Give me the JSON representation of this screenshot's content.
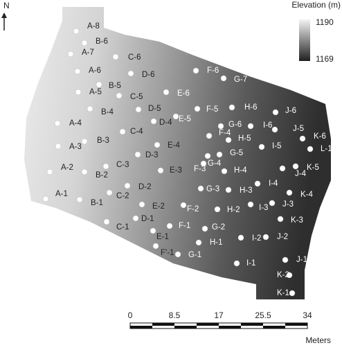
{
  "north": "N",
  "legend": {
    "title": "Elevation (m)",
    "max": 1190,
    "min": 1169
  },
  "points": [
    "A-8",
    "B-6",
    "A-7",
    "C-6",
    "A-6",
    "D-6",
    "B-5",
    "A-5",
    "C-5",
    "E-6",
    "F-6",
    "G-7",
    "B-4",
    "D-5",
    "D-4",
    "E-5",
    "F-5",
    "H-6",
    "J-6",
    "A-4",
    "C-4",
    "G-6",
    "I-6",
    "J-5",
    "K-6",
    "B-3",
    "A-3",
    "E-4",
    "F-4",
    "H-5",
    "L-1",
    "D-3",
    "G-5",
    "I-5",
    "C-3",
    "A-2",
    "B-2",
    "E-3",
    "F-3",
    "G-4",
    "H-4",
    "J-4",
    "K-5",
    "I-4",
    "D-2",
    "C-2",
    "A-1",
    "B-1",
    "G-3",
    "H-3",
    "K-4",
    "I-3",
    "J-3",
    "E-2",
    "F-2",
    "H-2",
    "D-1",
    "C-1",
    "F-1",
    "G-2",
    "K-3",
    "E-1",
    "H-1",
    "I-2",
    "J-2",
    "F'-1",
    "G-1",
    "I-1",
    "J-1",
    "K-2",
    "K-1"
  ],
  "scale": {
    "ticks": [
      0,
      8.5,
      17,
      25.5,
      34
    ],
    "unit": "Meters"
  }
}
